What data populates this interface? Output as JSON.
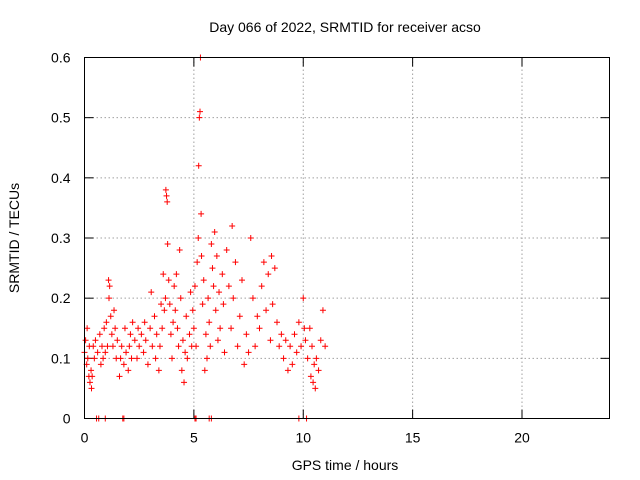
{
  "chart_data": {
    "type": "scatter",
    "title": "Day 066 of 2022, SRMTID for receiver acso",
    "xlabel": "GPS time / hours",
    "ylabel": "SRMTID / TECUs",
    "xlim": [
      0,
      24
    ],
    "ylim": [
      0,
      0.6
    ],
    "xticks": [
      0,
      5,
      10,
      15,
      20
    ],
    "xtick_labels": [
      "0",
      "5",
      "10",
      "15",
      "20"
    ],
    "yticks": [
      0,
      0.1,
      0.2,
      0.3,
      0.4,
      0.5,
      0.6
    ],
    "ytick_labels": [
      "0",
      "0.1",
      "0.2",
      "0.3",
      "0.4",
      "0.5",
      "0.6"
    ],
    "grid": true,
    "marker": "+",
    "series": [
      {
        "name": "SRMTID",
        "color": "#ff0000",
        "points": [
          [
            0.0,
            0.11
          ],
          [
            0.05,
            0.13
          ],
          [
            0.1,
            0.09
          ],
          [
            0.12,
            0.15
          ],
          [
            0.15,
            0.1
          ],
          [
            0.2,
            0.07
          ],
          [
            0.22,
            0.12
          ],
          [
            0.25,
            0.06
          ],
          [
            0.3,
            0.08
          ],
          [
            0.32,
            0.05
          ],
          [
            0.35,
            0.07
          ],
          [
            0.4,
            0.12
          ],
          [
            0.45,
            0.1
          ],
          [
            0.5,
            0.13
          ],
          [
            0.6,
            0.11
          ],
          [
            0.7,
            0.14
          ],
          [
            0.75,
            0.09
          ],
          [
            0.8,
            0.12
          ],
          [
            0.85,
            0.1
          ],
          [
            0.9,
            0.15
          ],
          [
            0.95,
            0.11
          ],
          [
            1.0,
            0.16
          ],
          [
            1.05,
            0.12
          ],
          [
            1.1,
            0.23
          ],
          [
            1.12,
            0.2
          ],
          [
            1.15,
            0.22
          ],
          [
            1.2,
            0.17
          ],
          [
            1.25,
            0.14
          ],
          [
            1.3,
            0.12
          ],
          [
            1.35,
            0.18
          ],
          [
            1.4,
            0.15
          ],
          [
            1.45,
            0.1
          ],
          [
            1.5,
            0.13
          ],
          [
            1.6,
            0.07
          ],
          [
            1.65,
            0.1
          ],
          [
            1.7,
            0.12
          ],
          [
            1.8,
            0.09
          ],
          [
            1.85,
            0.15
          ],
          [
            1.9,
            0.11
          ],
          [
            2.0,
            0.08
          ],
          [
            2.05,
            0.12
          ],
          [
            2.1,
            0.14
          ],
          [
            2.15,
            0.1
          ],
          [
            2.2,
            0.16
          ],
          [
            2.3,
            0.13
          ],
          [
            2.4,
            0.1
          ],
          [
            2.45,
            0.15
          ],
          [
            2.5,
            0.12
          ],
          [
            2.6,
            0.14
          ],
          [
            2.7,
            0.11
          ],
          [
            2.75,
            0.16
          ],
          [
            2.8,
            0.13
          ],
          [
            2.9,
            0.09
          ],
          [
            3.0,
            0.15
          ],
          [
            3.05,
            0.21
          ],
          [
            3.1,
            0.12
          ],
          [
            3.2,
            0.17
          ],
          [
            3.25,
            0.1
          ],
          [
            3.3,
            0.14
          ],
          [
            3.4,
            0.08
          ],
          [
            3.45,
            0.12
          ],
          [
            3.5,
            0.19
          ],
          [
            3.55,
            0.15
          ],
          [
            3.6,
            0.24
          ],
          [
            3.65,
            0.18
          ],
          [
            3.7,
            0.2
          ],
          [
            3.72,
            0.38
          ],
          [
            3.75,
            0.37
          ],
          [
            3.78,
            0.36
          ],
          [
            3.8,
            0.29
          ],
          [
            3.85,
            0.23
          ],
          [
            3.9,
            0.19
          ],
          [
            3.95,
            0.14
          ],
          [
            4.0,
            0.1
          ],
          [
            4.05,
            0.16
          ],
          [
            4.1,
            0.22
          ],
          [
            4.15,
            0.18
          ],
          [
            4.2,
            0.24
          ],
          [
            4.25,
            0.15
          ],
          [
            4.3,
            0.12
          ],
          [
            4.35,
            0.28
          ],
          [
            4.4,
            0.2
          ],
          [
            4.45,
            0.08
          ],
          [
            4.5,
            0.13
          ],
          [
            4.55,
            0.06
          ],
          [
            4.6,
            0.11
          ],
          [
            4.65,
            0.17
          ],
          [
            4.7,
            0.1
          ],
          [
            4.8,
            0.14
          ],
          [
            4.85,
            0.21
          ],
          [
            4.9,
            0.12
          ],
          [
            4.95,
            0.18
          ],
          [
            5.0,
            0.15
          ],
          [
            5.05,
            0.22
          ],
          [
            5.1,
            0.12
          ],
          [
            5.15,
            0.26
          ],
          [
            5.2,
            0.3
          ],
          [
            5.22,
            0.42
          ],
          [
            5.25,
            0.5
          ],
          [
            5.28,
            0.51
          ],
          [
            5.3,
            0.6
          ],
          [
            5.33,
            0.34
          ],
          [
            5.35,
            0.27
          ],
          [
            5.4,
            0.19
          ],
          [
            5.45,
            0.23
          ],
          [
            5.5,
            0.08
          ],
          [
            5.55,
            0.14
          ],
          [
            5.6,
            0.1
          ],
          [
            5.65,
            0.2
          ],
          [
            5.7,
            0.16
          ],
          [
            5.75,
            0.12
          ],
          [
            5.8,
            0.29
          ],
          [
            5.85,
            0.25
          ],
          [
            5.9,
            0.22
          ],
          [
            5.95,
            0.31
          ],
          [
            6.0,
            0.18
          ],
          [
            6.05,
            0.27
          ],
          [
            6.1,
            0.13
          ],
          [
            6.15,
            0.21
          ],
          [
            6.2,
            0.15
          ],
          [
            6.3,
            0.24
          ],
          [
            6.35,
            0.19
          ],
          [
            6.4,
            0.11
          ],
          [
            6.5,
            0.28
          ],
          [
            6.6,
            0.22
          ],
          [
            6.7,
            0.15
          ],
          [
            6.75,
            0.32
          ],
          [
            6.8,
            0.2
          ],
          [
            6.9,
            0.26
          ],
          [
            7.0,
            0.12
          ],
          [
            7.1,
            0.17
          ],
          [
            7.2,
            0.23
          ],
          [
            7.3,
            0.09
          ],
          [
            7.4,
            0.14
          ],
          [
            7.5,
            0.11
          ],
          [
            7.6,
            0.3
          ],
          [
            7.7,
            0.2
          ],
          [
            7.8,
            0.12
          ],
          [
            7.9,
            0.17
          ],
          [
            8.0,
            0.15
          ],
          [
            8.1,
            0.22
          ],
          [
            8.2,
            0.26
          ],
          [
            8.3,
            0.18
          ],
          [
            8.4,
            0.24
          ],
          [
            8.5,
            0.13
          ],
          [
            8.55,
            0.27
          ],
          [
            8.6,
            0.19
          ],
          [
            8.7,
            0.25
          ],
          [
            8.8,
            0.16
          ],
          [
            8.9,
            0.12
          ],
          [
            9.0,
            0.14
          ],
          [
            9.1,
            0.1
          ],
          [
            9.2,
            0.13
          ],
          [
            9.3,
            0.08
          ],
          [
            9.4,
            0.12
          ],
          [
            9.5,
            0.09
          ],
          [
            9.6,
            0.14
          ],
          [
            9.7,
            0.11
          ],
          [
            9.8,
            0.16
          ],
          [
            9.9,
            0.12
          ],
          [
            10.0,
            0.2
          ],
          [
            10.05,
            0.15
          ],
          [
            10.1,
            0.13
          ],
          [
            10.2,
            0.1
          ],
          [
            10.3,
            0.15
          ],
          [
            10.35,
            0.07
          ],
          [
            10.4,
            0.12
          ],
          [
            10.45,
            0.06
          ],
          [
            10.5,
            0.09
          ],
          [
            10.55,
            0.05
          ],
          [
            10.6,
            0.1
          ],
          [
            10.7,
            0.08
          ],
          [
            10.8,
            0.13
          ],
          [
            10.9,
            0.18
          ],
          [
            11.0,
            0.12
          ],
          [
            0.55,
            0
          ],
          [
            0.65,
            0
          ],
          [
            0.95,
            0
          ],
          [
            1.75,
            0
          ],
          [
            1.8,
            0
          ],
          [
            5.05,
            0
          ],
          [
            5.1,
            0
          ],
          [
            5.7,
            0
          ],
          [
            5.8,
            0
          ],
          [
            9.8,
            0
          ],
          [
            10.15,
            0
          ]
        ]
      }
    ]
  }
}
